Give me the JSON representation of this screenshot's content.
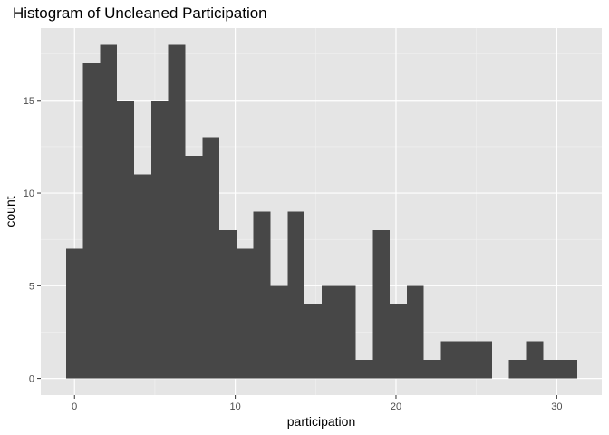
{
  "chart_data": {
    "type": "bar",
    "title": "Histogram of Uncleaned Participation",
    "xlabel": "participation",
    "ylabel": "count",
    "bin_width": 1.06,
    "bins": [
      {
        "start": -0.53,
        "end": 0.53,
        "count": 7
      },
      {
        "start": 0.53,
        "end": 1.59,
        "count": 17
      },
      {
        "start": 1.59,
        "end": 2.65,
        "count": 18
      },
      {
        "start": 2.65,
        "end": 3.71,
        "count": 15
      },
      {
        "start": 3.71,
        "end": 4.77,
        "count": 11
      },
      {
        "start": 4.77,
        "end": 5.83,
        "count": 15
      },
      {
        "start": 5.83,
        "end": 6.89,
        "count": 18
      },
      {
        "start": 6.89,
        "end": 7.95,
        "count": 12
      },
      {
        "start": 7.95,
        "end": 9.01,
        "count": 13
      },
      {
        "start": 9.01,
        "end": 10.07,
        "count": 8
      },
      {
        "start": 10.07,
        "end": 11.13,
        "count": 7
      },
      {
        "start": 11.13,
        "end": 12.19,
        "count": 9
      },
      {
        "start": 12.19,
        "end": 13.25,
        "count": 5
      },
      {
        "start": 13.25,
        "end": 14.31,
        "count": 9
      },
      {
        "start": 14.31,
        "end": 15.37,
        "count": 4
      },
      {
        "start": 15.37,
        "end": 16.43,
        "count": 5
      },
      {
        "start": 16.43,
        "end": 17.49,
        "count": 5
      },
      {
        "start": 17.49,
        "end": 18.55,
        "count": 1
      },
      {
        "start": 18.55,
        "end": 19.61,
        "count": 8
      },
      {
        "start": 19.61,
        "end": 20.67,
        "count": 4
      },
      {
        "start": 20.67,
        "end": 21.73,
        "count": 5
      },
      {
        "start": 21.73,
        "end": 22.79,
        "count": 1
      },
      {
        "start": 22.79,
        "end": 23.85,
        "count": 2
      },
      {
        "start": 23.85,
        "end": 24.91,
        "count": 2
      },
      {
        "start": 24.91,
        "end": 25.97,
        "count": 2
      },
      {
        "start": 25.97,
        "end": 27.03,
        "count": 0
      },
      {
        "start": 27.03,
        "end": 28.09,
        "count": 1
      },
      {
        "start": 28.09,
        "end": 29.15,
        "count": 2
      },
      {
        "start": 29.15,
        "end": 30.21,
        "count": 1
      },
      {
        "start": 30.21,
        "end": 31.27,
        "count": 1
      }
    ],
    "xlim": [
      -2.1,
      32.8
    ],
    "ylim": [
      -0.9,
      18.9
    ],
    "x_ticks": [
      0,
      10,
      20,
      30
    ],
    "x_tick_labels": [
      "0",
      "10",
      "20",
      "30"
    ],
    "y_ticks": [
      0,
      5,
      10,
      15
    ],
    "y_tick_labels": [
      "0",
      "5",
      "10",
      "15"
    ],
    "grid": true,
    "colors": {
      "bar": "#474747",
      "panel": "#e5e5e5",
      "grid_major": "#ffffff",
      "grid_minor": "#f2f2f2",
      "tick": "#333333",
      "tick_label": "#4d4d4d"
    }
  }
}
